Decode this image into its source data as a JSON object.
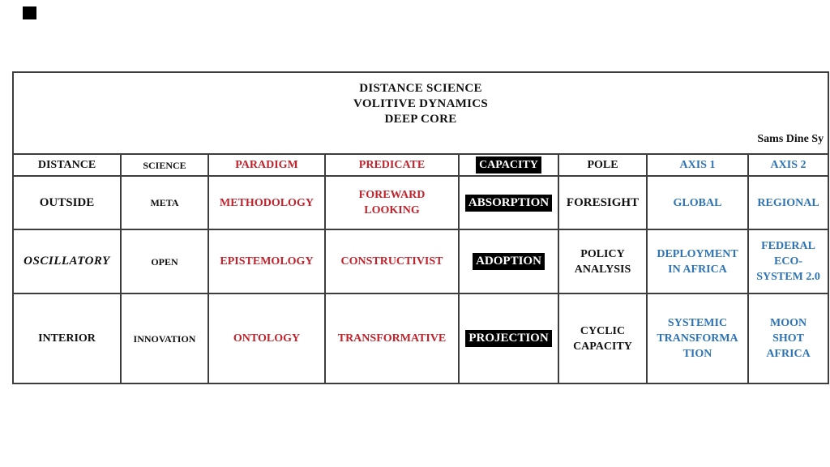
{
  "colors": {
    "text_black": "#111111",
    "text_red": "#c0232c",
    "text_blue": "#2e74b5",
    "highlight_bg": "#000000",
    "highlight_text": "#ffffff",
    "border": "#3d3d3d",
    "page_background": "#ffffff",
    "corner_marker": "#000000"
  },
  "table": {
    "title_lines": [
      "DISTANCE SCIENCE",
      "VOLITIVE DYNAMICS",
      "DEEP CORE"
    ],
    "author": "Sams Dine Sy",
    "columns": [
      {
        "label": "DISTANCE",
        "style": "black",
        "size": "normal"
      },
      {
        "label": "SCIENCE",
        "style": "black",
        "size": "small"
      },
      {
        "label": "PARADIGM",
        "style": "red",
        "size": "normal"
      },
      {
        "label": "PREDICATE",
        "style": "red",
        "size": "normal"
      },
      {
        "label": "CAPACITY",
        "style": "inverse",
        "size": "normal"
      },
      {
        "label": "POLE",
        "style": "black",
        "size": "normal"
      },
      {
        "label": "AXIS 1",
        "style": "blue",
        "size": "normal"
      },
      {
        "label": "AXIS 2",
        "style": "blue",
        "size": "normal"
      }
    ],
    "rows": [
      {
        "cells": [
          {
            "lines": [
              "OUTSIDE"
            ],
            "style": "black",
            "size": "large"
          },
          {
            "lines": [
              "META"
            ],
            "style": "black",
            "size": "small"
          },
          {
            "lines": [
              "METHODOLOGY"
            ],
            "style": "red",
            "size": "normal"
          },
          {
            "lines": [
              "FOREWARD",
              "LOOKING"
            ],
            "style": "red",
            "size": "normal"
          },
          {
            "lines": [
              "ABSORPTION"
            ],
            "style": "inverse",
            "size": "large"
          },
          {
            "lines": [
              "FORESIGHT"
            ],
            "style": "black",
            "size": "large"
          },
          {
            "lines": [
              "GLOBAL"
            ],
            "style": "blue",
            "size": "normal"
          },
          {
            "lines": [
              "REGIONAL"
            ],
            "style": "blue",
            "size": "normal"
          }
        ]
      },
      {
        "cells": [
          {
            "lines": [
              "OSCILLATORY"
            ],
            "style": "black",
            "size": "large",
            "italic": true
          },
          {
            "lines": [
              "OPEN"
            ],
            "style": "black",
            "size": "small"
          },
          {
            "lines": [
              "EPISTEMOLOGY"
            ],
            "style": "red",
            "size": "normal"
          },
          {
            "lines": [
              "CONSTRUCTIVIST"
            ],
            "style": "red",
            "size": "normal"
          },
          {
            "lines": [
              "ADOPTION"
            ],
            "style": "inverse",
            "size": "large"
          },
          {
            "lines": [
              "POLICY",
              "ANALYSIS"
            ],
            "style": "black",
            "size": "normal"
          },
          {
            "lines": [
              "DEPLOYMENT",
              "IN AFRICA"
            ],
            "style": "blue",
            "size": "normal"
          },
          {
            "lines": [
              "FEDERAL",
              "ECO-",
              "SYSTEM 2.0"
            ],
            "style": "blue",
            "size": "normal"
          }
        ]
      },
      {
        "cells": [
          {
            "lines": [
              "INTERIOR"
            ],
            "style": "black",
            "size": "normal"
          },
          {
            "lines": [
              "INNOVATION"
            ],
            "style": "black",
            "size": "small"
          },
          {
            "lines": [
              "ONTOLOGY"
            ],
            "style": "red",
            "size": "normal"
          },
          {
            "lines": [
              "TRANSFORMATIVE"
            ],
            "style": "red",
            "size": "normal"
          },
          {
            "lines": [
              "PROJECTION"
            ],
            "style": "inverse",
            "size": "large"
          },
          {
            "lines": [
              "CYCLIC",
              "CAPACITY"
            ],
            "style": "black",
            "size": "normal"
          },
          {
            "lines": [
              "SYSTEMIC",
              "TRANSFORMA",
              "TION"
            ],
            "style": "blue",
            "size": "normal"
          },
          {
            "lines": [
              "MOON",
              "SHOT",
              "AFRICA"
            ],
            "style": "blue",
            "size": "normal"
          }
        ]
      }
    ]
  }
}
